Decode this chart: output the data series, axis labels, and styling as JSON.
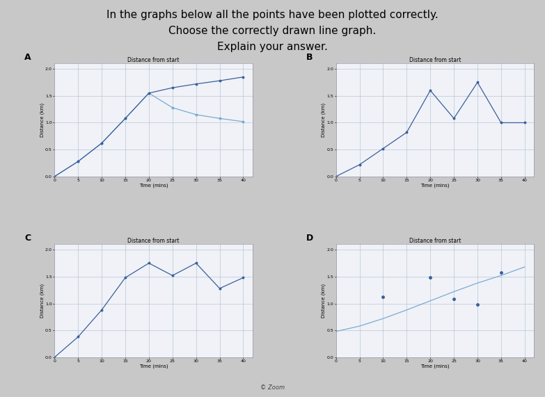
{
  "title_line1": "In the graphs below all the points have been plotted correctly.",
  "title_line2": "Choose the correctly drawn line graph.",
  "title_line3": "Explain your answer.",
  "background_color": "#c8c8c8",
  "panel_bg": "#dce0ec",
  "graph_bg": "#f0f2f8",
  "line_color_dark": "#3a5f9a",
  "line_color_mid": "#5580bb",
  "line_color_light": "#7aaad0",
  "dot_color": "#3a5f9a",
  "label_A": "A",
  "label_B": "B",
  "label_C": "C",
  "label_D": "D",
  "graph_title": "Distance from start",
  "xlabel": "Time (mins)",
  "ylabel": "Distance (km)",
  "x_ticks": [
    0,
    5,
    10,
    15,
    20,
    25,
    30,
    35,
    40
  ],
  "y_ticks": [
    0,
    0.5,
    1,
    1.5,
    2
  ],
  "xlim": [
    0,
    42
  ],
  "ylim": [
    0,
    2.1
  ],
  "graphA_x": [
    0,
    5,
    10,
    15,
    20,
    25,
    30,
    35,
    40
  ],
  "graphA_y1": [
    0,
    0.28,
    0.62,
    1.08,
    1.55,
    1.65,
    1.72,
    1.78,
    1.85
  ],
  "graphA_y2": [
    0,
    0.28,
    0.62,
    1.08,
    1.55,
    1.28,
    1.15,
    1.08,
    1.02
  ],
  "graphB_x": [
    0,
    5,
    10,
    15,
    20,
    25,
    30,
    35,
    40
  ],
  "graphB_y": [
    0,
    0.22,
    0.52,
    0.82,
    1.6,
    1.08,
    1.75,
    1.0,
    1.0
  ],
  "graphC_x": [
    0,
    5,
    10,
    15,
    20,
    25,
    30,
    35,
    40
  ],
  "graphC_y": [
    0,
    0.38,
    0.88,
    1.48,
    1.75,
    1.52,
    1.75,
    1.28,
    1.48
  ],
  "graphD_x": [
    0,
    5,
    10,
    15,
    20,
    25,
    30,
    35,
    40
  ],
  "graphD_y": [
    0.48,
    0.58,
    0.72,
    0.88,
    1.05,
    1.22,
    1.38,
    1.52,
    1.68
  ],
  "graphD_dots_x": [
    10,
    20,
    25,
    30,
    35
  ],
  "graphD_dots_y": [
    1.12,
    1.48,
    1.08,
    0.98,
    1.58
  ],
  "footer": "© Zoom",
  "font_size_title": 11,
  "font_size_label": 5,
  "font_size_axis": 4.5,
  "font_size_graph_title": 5.5,
  "font_size_panel_label": 9
}
